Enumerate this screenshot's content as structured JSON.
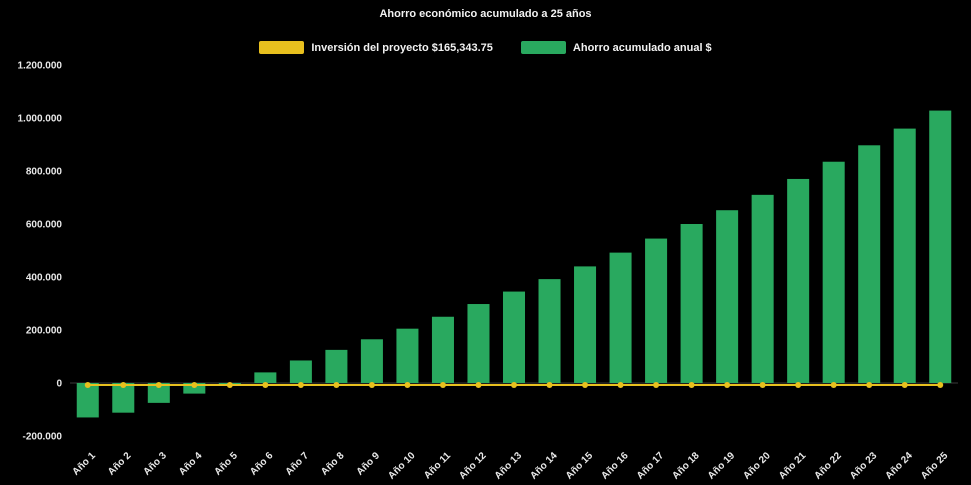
{
  "title": "Ahorro económico acumulado a 25 años",
  "colors": {
    "background": "#000000",
    "text": "#F2F2F2",
    "bar_green": "#29A95F",
    "line_yellow": "#E8C01E"
  },
  "legend": {
    "items": [
      {
        "label": "Inversión del proyecto $165,343.75",
        "color": "#E8C01E",
        "shape": "bar"
      },
      {
        "label": "Ahorro acumulado anual $",
        "color": "#29A95F",
        "shape": "bar"
      }
    ]
  },
  "chart_data": {
    "type": "bar",
    "title": "Ahorro económico acumulado a 25 años",
    "categories": [
      "Año 1",
      "Año 2",
      "Año 3",
      "Año 4",
      "Año 5",
      "Año 6",
      "Año 7",
      "Año 8",
      "Año 9",
      "Año 10",
      "Año 11",
      "Año 12",
      "Año 13",
      "Año 14",
      "Año 15",
      "Año 16",
      "Año 17",
      "Año 18",
      "Año 19",
      "Año 20",
      "Año 21",
      "Año 22",
      "Año 23",
      "Año 24",
      "Año 25"
    ],
    "series": [
      {
        "name": "Ahorro acumulado anual $",
        "type": "bar",
        "color": "#29A95F",
        "values": [
          -130000,
          -112000,
          -75000,
          -40000,
          -8000,
          40000,
          85000,
          125000,
          165000,
          205000,
          250000,
          298000,
          345000,
          392000,
          440000,
          492000,
          545000,
          600000,
          652000,
          710000,
          770000,
          835000,
          897000,
          960000,
          1028000
        ]
      },
      {
        "name": "Inversión del proyecto $165,343.75",
        "type": "line",
        "color": "#E8C01E",
        "values": [
          0,
          0,
          0,
          0,
          0,
          0,
          0,
          0,
          0,
          0,
          0,
          0,
          0,
          0,
          0,
          0,
          0,
          0,
          0,
          0,
          0,
          0,
          0,
          0,
          0
        ]
      }
    ],
    "xlabel": "",
    "ylabel": "",
    "ylim": [
      -200000,
      1200000
    ],
    "yticks": [
      -200000,
      0,
      200000,
      400000,
      600000,
      800000,
      1000000,
      1200000
    ],
    "ytick_labels": [
      "-200.000",
      "0",
      "200.000",
      "400.000",
      "600.000",
      "800.000",
      "1.000.000",
      "1.200.000"
    ],
    "grid": false,
    "legend_position": "top"
  }
}
